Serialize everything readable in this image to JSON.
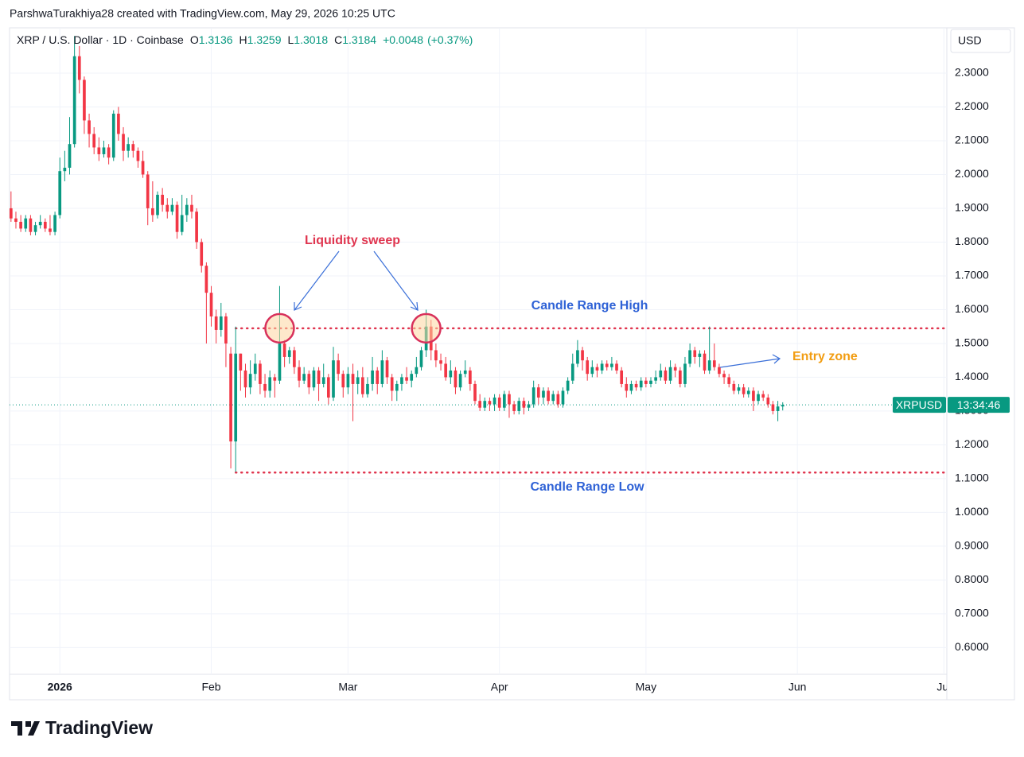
{
  "header": {
    "credit": "ParshwaTurakhiya28 created with TradingView.com, May 29, 2026 10:25 UTC",
    "symbol": "XRP / U.S. Dollar · 1D · Coinbase",
    "ohlc_labels": [
      "O",
      "H",
      "L",
      "C"
    ],
    "change": "+0.0048",
    "change_pct": "(+0.37%)",
    "currency": "USD"
  },
  "chart_data": {
    "type": "candlestick",
    "x": [
      -10,
      -9,
      -8,
      -7,
      -6,
      -5,
      -4,
      -3,
      -2,
      -1,
      0,
      1,
      2,
      3,
      4,
      5,
      6,
      7,
      8,
      9,
      10,
      11,
      12,
      13,
      14,
      15,
      16,
      17,
      18,
      19,
      20,
      21,
      22,
      23,
      24,
      25,
      26,
      27,
      28,
      29,
      30,
      31,
      32,
      33,
      34,
      35,
      36,
      37,
      38,
      39,
      40,
      41,
      42,
      43,
      44,
      45,
      46,
      47,
      48,
      49,
      50,
      51,
      52,
      53,
      54,
      55,
      56,
      57,
      58,
      59,
      60,
      61,
      62,
      63,
      64,
      65,
      66,
      67,
      68,
      69,
      70,
      71,
      72,
      73,
      74,
      75,
      76,
      77,
      78,
      79,
      80,
      81,
      82,
      83,
      84,
      85,
      86,
      87,
      88,
      89,
      90,
      91,
      92,
      93,
      94,
      95,
      96,
      97,
      98,
      99,
      100,
      101,
      102,
      103,
      104,
      105,
      106,
      107,
      108,
      109,
      110,
      111,
      112,
      113,
      114,
      115,
      116,
      117,
      118,
      119,
      120,
      121,
      122,
      123,
      124,
      125,
      126,
      127,
      128,
      129,
      130,
      131,
      132,
      133,
      134,
      135,
      136,
      137,
      138,
      139,
      140,
      141,
      142,
      143,
      144,
      145,
      146,
      147,
      148
    ],
    "open": [
      1.9,
      1.87,
      1.86,
      1.84,
      1.87,
      1.83,
      1.85,
      1.86,
      1.84,
      1.83,
      1.88,
      2.01,
      2.02,
      2.09,
      2.35,
      2.28,
      2.16,
      2.12,
      2.08,
      2.06,
      2.08,
      2.05,
      2.18,
      2.12,
      2.07,
      2.09,
      2.07,
      2.04,
      2.0,
      1.9,
      1.88,
      1.94,
      1.91,
      1.89,
      1.91,
      1.83,
      1.88,
      1.91,
      1.89,
      1.8,
      1.73,
      1.65,
      1.58,
      1.54,
      1.58,
      1.47,
      1.21,
      1.47,
      1.42,
      1.37,
      1.41,
      1.44,
      1.38,
      1.36,
      1.4,
      1.39,
      1.5,
      1.46,
      1.48,
      1.43,
      1.39,
      1.41,
      1.37,
      1.42,
      1.38,
      1.4,
      1.34,
      1.45,
      1.41,
      1.37,
      1.41,
      1.38,
      1.4,
      1.35,
      1.38,
      1.42,
      1.38,
      1.45,
      1.4,
      1.36,
      1.38,
      1.4,
      1.39,
      1.41,
      1.43,
      1.48,
      1.55,
      1.48,
      1.45,
      1.44,
      1.4,
      1.42,
      1.37,
      1.41,
      1.42,
      1.38,
      1.33,
      1.31,
      1.33,
      1.32,
      1.34,
      1.31,
      1.35,
      1.32,
      1.3,
      1.33,
      1.31,
      1.32,
      1.37,
      1.34,
      1.36,
      1.33,
      1.35,
      1.32,
      1.36,
      1.39,
      1.44,
      1.48,
      1.45,
      1.41,
      1.43,
      1.42,
      1.44,
      1.43,
      1.44,
      1.42,
      1.38,
      1.36,
      1.38,
      1.37,
      1.39,
      1.38,
      1.39,
      1.4,
      1.42,
      1.39,
      1.43,
      1.42,
      1.38,
      1.44,
      1.48,
      1.46,
      1.47,
      1.42,
      1.45,
      1.43,
      1.41,
      1.4,
      1.38,
      1.36,
      1.37,
      1.35,
      1.36,
      1.33,
      1.35,
      1.34,
      1.32,
      1.3,
      1.3136
    ],
    "high": [
      1.95,
      1.89,
      1.88,
      1.88,
      1.88,
      1.86,
      1.88,
      1.87,
      1.88,
      1.89,
      2.05,
      2.07,
      2.17,
      2.41,
      2.38,
      2.29,
      2.18,
      2.14,
      2.11,
      2.1,
      2.09,
      2.19,
      2.2,
      2.14,
      2.11,
      2.1,
      2.08,
      2.07,
      2.01,
      1.98,
      1.95,
      1.96,
      1.93,
      1.93,
      1.92,
      1.94,
      1.93,
      1.94,
      1.9,
      1.81,
      1.74,
      1.67,
      1.6,
      1.62,
      1.59,
      1.49,
      1.55,
      1.47,
      1.44,
      1.45,
      1.47,
      1.45,
      1.41,
      1.42,
      1.41,
      1.67,
      1.51,
      1.49,
      1.49,
      1.45,
      1.43,
      1.42,
      1.43,
      1.43,
      1.44,
      1.41,
      1.49,
      1.47,
      1.42,
      1.43,
      1.44,
      1.42,
      1.43,
      1.4,
      1.46,
      1.43,
      1.48,
      1.46,
      1.41,
      1.39,
      1.41,
      1.43,
      1.42,
      1.46,
      1.49,
      1.6,
      1.57,
      1.5,
      1.47,
      1.46,
      1.45,
      1.43,
      1.42,
      1.45,
      1.43,
      1.39,
      1.35,
      1.34,
      1.34,
      1.35,
      1.35,
      1.36,
      1.36,
      1.33,
      1.34,
      1.34,
      1.33,
      1.39,
      1.38,
      1.37,
      1.37,
      1.36,
      1.36,
      1.37,
      1.4,
      1.47,
      1.51,
      1.49,
      1.46,
      1.45,
      1.44,
      1.45,
      1.45,
      1.46,
      1.45,
      1.43,
      1.4,
      1.39,
      1.39,
      1.4,
      1.4,
      1.4,
      1.42,
      1.44,
      1.43,
      1.45,
      1.44,
      1.43,
      1.46,
      1.5,
      1.49,
      1.48,
      1.48,
      1.55,
      1.5,
      1.44,
      1.42,
      1.41,
      1.39,
      1.38,
      1.38,
      1.37,
      1.37,
      1.36,
      1.36,
      1.35,
      1.33,
      1.33,
      1.3259
    ],
    "low": [
      1.86,
      1.84,
      1.83,
      1.83,
      1.82,
      1.82,
      1.84,
      1.83,
      1.82,
      1.82,
      1.87,
      1.98,
      2.0,
      2.08,
      2.24,
      2.12,
      2.08,
      2.06,
      2.04,
      2.05,
      2.03,
      2.04,
      2.1,
      2.04,
      2.05,
      2.05,
      2.02,
      1.99,
      1.85,
      1.86,
      1.87,
      1.89,
      1.87,
      1.88,
      1.81,
      1.82,
      1.86,
      1.87,
      1.78,
      1.71,
      1.5,
      1.55,
      1.5,
      1.52,
      1.43,
      1.13,
      1.12,
      1.36,
      1.34,
      1.35,
      1.39,
      1.35,
      1.34,
      1.34,
      1.34,
      1.38,
      1.43,
      1.44,
      1.41,
      1.37,
      1.38,
      1.35,
      1.36,
      1.33,
      1.37,
      1.32,
      1.33,
      1.39,
      1.34,
      1.35,
      1.27,
      1.35,
      1.34,
      1.34,
      1.36,
      1.35,
      1.37,
      1.38,
      1.33,
      1.33,
      1.36,
      1.38,
      1.37,
      1.4,
      1.42,
      1.46,
      1.45,
      1.43,
      1.42,
      1.39,
      1.38,
      1.35,
      1.36,
      1.4,
      1.36,
      1.32,
      1.3,
      1.3,
      1.3,
      1.3,
      1.3,
      1.3,
      1.28,
      1.29,
      1.29,
      1.29,
      1.3,
      1.31,
      1.32,
      1.32,
      1.32,
      1.32,
      1.31,
      1.31,
      1.35,
      1.38,
      1.43,
      1.42,
      1.39,
      1.4,
      1.4,
      1.41,
      1.42,
      1.42,
      1.41,
      1.37,
      1.34,
      1.35,
      1.36,
      1.36,
      1.37,
      1.37,
      1.38,
      1.39,
      1.38,
      1.38,
      1.4,
      1.37,
      1.37,
      1.43,
      1.44,
      1.43,
      1.41,
      1.41,
      1.42,
      1.4,
      1.38,
      1.37,
      1.35,
      1.35,
      1.34,
      1.34,
      1.3,
      1.32,
      1.33,
      1.31,
      1.29,
      1.27,
      1.3018
    ],
    "close": [
      1.87,
      1.86,
      1.84,
      1.87,
      1.83,
      1.85,
      1.86,
      1.84,
      1.83,
      1.88,
      2.01,
      2.02,
      2.09,
      2.35,
      2.28,
      2.16,
      2.12,
      2.08,
      2.06,
      2.08,
      2.05,
      2.18,
      2.12,
      2.07,
      2.09,
      2.07,
      2.04,
      2.0,
      1.9,
      1.88,
      1.94,
      1.91,
      1.89,
      1.91,
      1.83,
      1.88,
      1.91,
      1.89,
      1.8,
      1.73,
      1.65,
      1.58,
      1.54,
      1.58,
      1.5,
      1.21,
      1.47,
      1.42,
      1.37,
      1.41,
      1.44,
      1.38,
      1.36,
      1.4,
      1.39,
      1.5,
      1.46,
      1.48,
      1.43,
      1.39,
      1.41,
      1.37,
      1.42,
      1.38,
      1.4,
      1.34,
      1.45,
      1.41,
      1.37,
      1.41,
      1.38,
      1.4,
      1.35,
      1.38,
      1.42,
      1.38,
      1.45,
      1.4,
      1.36,
      1.38,
      1.4,
      1.39,
      1.41,
      1.43,
      1.48,
      1.55,
      1.48,
      1.45,
      1.44,
      1.4,
      1.42,
      1.37,
      1.41,
      1.42,
      1.38,
      1.33,
      1.31,
      1.33,
      1.32,
      1.34,
      1.31,
      1.35,
      1.32,
      1.3,
      1.33,
      1.31,
      1.32,
      1.37,
      1.34,
      1.36,
      1.33,
      1.35,
      1.32,
      1.36,
      1.39,
      1.44,
      1.48,
      1.45,
      1.41,
      1.43,
      1.42,
      1.44,
      1.43,
      1.44,
      1.42,
      1.38,
      1.36,
      1.38,
      1.37,
      1.39,
      1.38,
      1.39,
      1.4,
      1.42,
      1.39,
      1.43,
      1.42,
      1.38,
      1.44,
      1.48,
      1.46,
      1.47,
      1.42,
      1.45,
      1.43,
      1.41,
      1.4,
      1.38,
      1.36,
      1.37,
      1.35,
      1.36,
      1.33,
      1.35,
      1.34,
      1.32,
      1.3,
      1.3136,
      1.3184
    ],
    "up_color": "#089981",
    "down_color": "#f23645",
    "xlim": [
      -10.3,
      181.6
    ],
    "xticks": [
      {
        "value": 0,
        "label": "2026"
      },
      {
        "value": 31,
        "label": "Feb"
      },
      {
        "value": 59,
        "label": "Mar"
      },
      {
        "value": 90,
        "label": "Apr"
      },
      {
        "value": 120,
        "label": "May"
      },
      {
        "value": 151,
        "label": "Jun"
      },
      {
        "value": 181,
        "label": "Jul"
      }
    ],
    "ylim": [
      0.521,
      2.434
    ],
    "yticks": [
      {
        "value": 0.6,
        "label": "0.6000"
      },
      {
        "value": 0.7,
        "label": "0.7000"
      },
      {
        "value": 0.8,
        "label": "0.8000"
      },
      {
        "value": 0.9,
        "label": "0.9000"
      },
      {
        "value": 1.0,
        "label": "1.0000"
      },
      {
        "value": 1.1,
        "label": "1.1000"
      },
      {
        "value": 1.2,
        "label": "1.2000"
      },
      {
        "value": 1.3,
        "label": "1.3000"
      },
      {
        "value": 1.4,
        "label": "1.4000"
      },
      {
        "value": 1.5,
        "label": "1.5000"
      },
      {
        "value": 1.6,
        "label": "1.6000"
      },
      {
        "value": 1.7,
        "label": "1.7000"
      },
      {
        "value": 1.8,
        "label": "1.8000"
      },
      {
        "value": 1.9,
        "label": "1.9000"
      },
      {
        "value": 2.0,
        "label": "2.0000"
      },
      {
        "value": 2.1,
        "label": "2.1000"
      },
      {
        "value": 2.2,
        "label": "2.2000"
      },
      {
        "value": 2.3,
        "label": "2.3000"
      }
    ],
    "grid": true,
    "levels": [
      {
        "name": "Candle Range High",
        "value": 1.545,
        "x0": 36,
        "color": "#e0354f"
      },
      {
        "name": "Candle Range Low",
        "value": 1.118,
        "x0": 36,
        "color": "#e0354f"
      }
    ],
    "price_tag": {
      "symbol": "XRPUSD",
      "countdown": "13:34:46"
    },
    "annotations": {
      "sweep": "Liquidity sweep",
      "entry": "Entry zone"
    }
  },
  "footer": {
    "brand": "TradingView"
  }
}
